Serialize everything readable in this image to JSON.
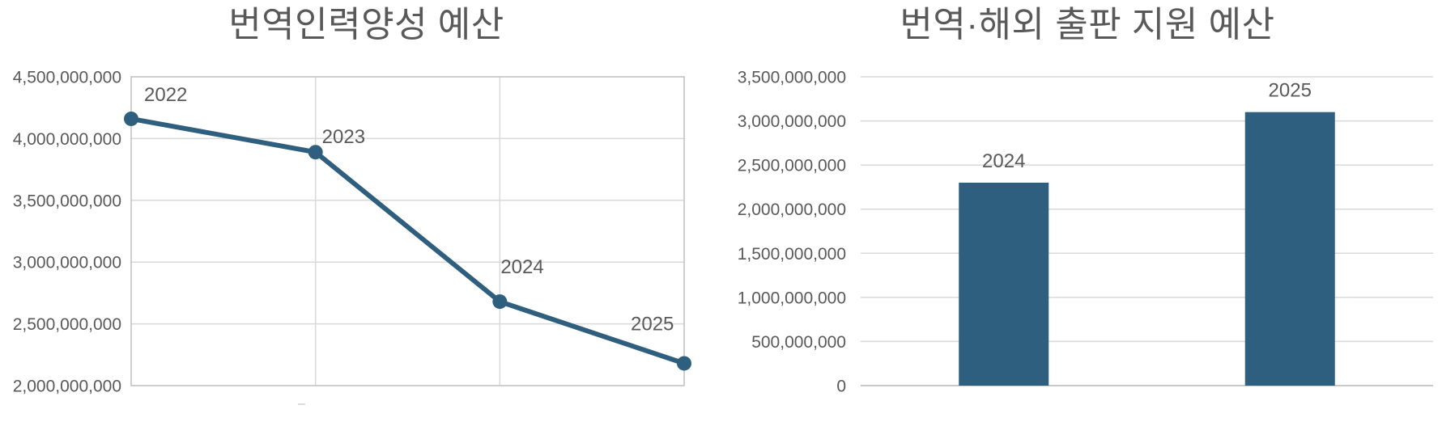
{
  "page": {
    "background": "#FFFFFF",
    "text_color": "#595959"
  },
  "colors": {
    "series": "#2E5F7E",
    "gridline": "#D9D9D9",
    "axis_border": "#BFBFBF",
    "zero_line": "#C9C9C9",
    "label_text": "#595959",
    "title_text": "#595959"
  },
  "chart_data": [
    {
      "type": "line",
      "title": "번역인력양성 예산",
      "categories": [
        "2022",
        "2023",
        "2024",
        "2025"
      ],
      "values": [
        4160000000,
        3890000000,
        2680000000,
        2180000000
      ],
      "ylim": [
        2000000000,
        4500000000
      ],
      "ytick_step": 500000000,
      "ytick_labels": [
        "2,000,000,000",
        "2,500,000,000",
        "3,000,000,000",
        "3,500,000,000",
        "4,000,000,000",
        "4,500,000,000"
      ],
      "xlabel": "",
      "ylabel": "",
      "legend": "none",
      "grid": "horizontal gridlines plus vertical gridlines at each category; plot area fully bordered",
      "marker": "filled-circle",
      "data_labels": "year shown above each point",
      "series_color": "#2E5F7E"
    },
    {
      "type": "bar",
      "title": "번역·해외 출판 지원 예산",
      "categories": [
        "2024",
        "2025"
      ],
      "values": [
        2300000000,
        3100000000
      ],
      "ylim": [
        0,
        3500000000
      ],
      "ytick_step": 500000000,
      "ytick_labels": [
        "0",
        "500,000,000",
        "1,000,000,000",
        "1,500,000,000",
        "2,000,000,000",
        "2,500,000,000",
        "3,000,000,000",
        "3,500,000,000"
      ],
      "xlabel": "",
      "ylabel": "",
      "legend": "none",
      "grid": "horizontal gridlines only; no plot border; no vertical axis line",
      "data_labels": "year shown above each bar",
      "series_color": "#2E5F7E"
    }
  ]
}
